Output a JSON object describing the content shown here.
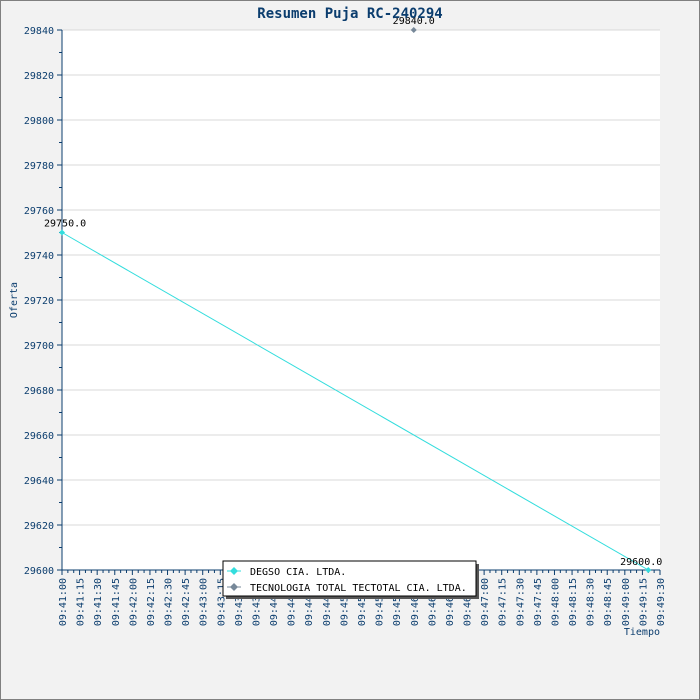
{
  "chart_data": {
    "type": "line",
    "title": "Resumen Puja RC-240294",
    "xlabel": "Tiempo",
    "ylabel": "Oferta",
    "ylim": [
      29600,
      29840
    ],
    "yticks": [
      29600,
      29620,
      29640,
      29660,
      29680,
      29700,
      29720,
      29740,
      29760,
      29780,
      29800,
      29820,
      29840
    ],
    "x_ticks": [
      "09:41:00",
      "09:41:15",
      "09:41:30",
      "09:41:45",
      "09:42:00",
      "09:42:15",
      "09:42:30",
      "09:42:45",
      "09:43:00",
      "09:43:15",
      "09:43:30",
      "09:43:45",
      "09:44:00",
      "09:44:15",
      "09:44:30",
      "09:44:45",
      "09:45:00",
      "09:45:15",
      "09:45:30",
      "09:45:45",
      "09:46:00",
      "09:46:15",
      "09:46:30",
      "09:46:45",
      "09:47:00",
      "09:47:15",
      "09:47:30",
      "09:47:45",
      "09:48:00",
      "09:48:15",
      "09:48:30",
      "09:48:45",
      "09:49:00",
      "09:49:15",
      "09:49:30"
    ],
    "grid": true,
    "legend_position": "bottom-center",
    "series": [
      {
        "name": "DEGSO CIA. LTDA.",
        "color": "#33dddd",
        "marker": "diamond",
        "points": [
          {
            "x": "09:41:00",
            "y": 29750.0,
            "label": "29750.0"
          },
          {
            "x": "09:49:20",
            "y": 29600.0,
            "label": "29600.0"
          }
        ]
      },
      {
        "name": "TECNOLOGIA TOTAL TECTOTAL CIA. LTDA.",
        "color": "#778899",
        "marker": "diamond",
        "points": [
          {
            "x": "09:46:00",
            "y": 29840.0,
            "label": "29840.0"
          }
        ]
      }
    ]
  }
}
